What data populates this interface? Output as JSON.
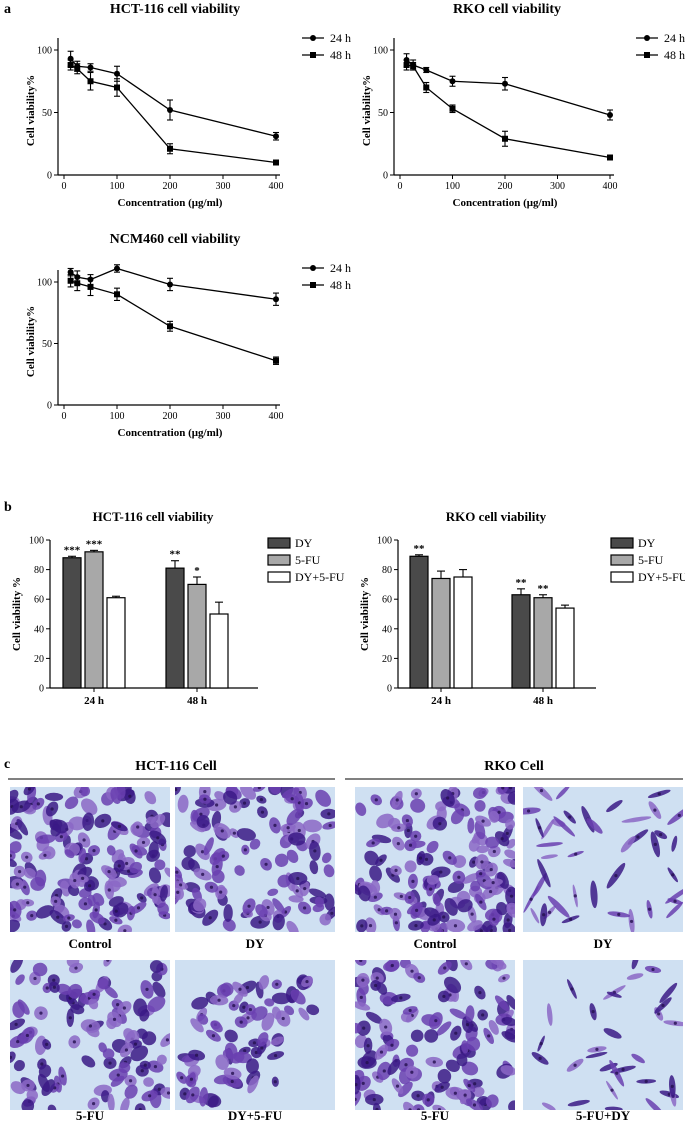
{
  "panel_labels": {
    "a": "a",
    "b": "b",
    "c": "c"
  },
  "colors": {
    "ink": "#000000",
    "bar_dy": "#4a4a4a",
    "bar_5fu": "#a8a8a8",
    "bar_combo": "#ffffff",
    "stain_dark": "#3b1a86",
    "stain_mid": "#6a3fb0",
    "stain_light": "#8b67c6",
    "background_glass": "#cfe0f2"
  },
  "chart_data": [
    {
      "id": "hct_line",
      "type": "line",
      "title": "HCT-116 cell viability",
      "xlabel": "Concentration (μg/ml)",
      "ylabel": "Cell viability%",
      "xlim": [
        0,
        400
      ],
      "ylim": [
        0,
        100
      ],
      "xticks": [
        0,
        100,
        200,
        300,
        400
      ],
      "yticks": [
        0,
        50,
        100
      ],
      "legend": "top-right",
      "series": [
        {
          "name": "24 h",
          "marker": "circle",
          "x": [
            12.5,
            25,
            50,
            100,
            200,
            400
          ],
          "y": [
            93,
            87,
            86,
            81,
            52,
            31
          ],
          "err": [
            6,
            4,
            3,
            6,
            8,
            3
          ]
        },
        {
          "name": "48 h",
          "marker": "square",
          "x": [
            12.5,
            25,
            50,
            100,
            200,
            400
          ],
          "y": [
            88,
            85,
            75,
            70,
            21,
            10
          ],
          "err": [
            4,
            4,
            7,
            7,
            4,
            1
          ]
        }
      ]
    },
    {
      "id": "rko_line",
      "type": "line",
      "title": "RKO cell viability",
      "xlabel": "Concentration (μg/ml)",
      "ylabel": "Cell viability%",
      "xlim": [
        0,
        400
      ],
      "ylim": [
        0,
        100
      ],
      "xticks": [
        0,
        100,
        200,
        300,
        400
      ],
      "yticks": [
        0,
        50,
        100
      ],
      "legend": "top-right",
      "series": [
        {
          "name": "24 h",
          "marker": "circle",
          "x": [
            12.5,
            25,
            50,
            100,
            200,
            400
          ],
          "y": [
            92,
            88,
            84,
            75,
            73,
            48
          ],
          "err": [
            5,
            4,
            2,
            4,
            5,
            4
          ]
        },
        {
          "name": "48 h",
          "marker": "square",
          "x": [
            12.5,
            25,
            50,
            100,
            200,
            400
          ],
          "y": [
            88,
            87,
            70,
            53,
            29,
            14
          ],
          "err": [
            4,
            3,
            4,
            3,
            6,
            1
          ]
        }
      ]
    },
    {
      "id": "ncm_line",
      "type": "line",
      "title": "NCM460 cell viability",
      "xlabel": "Concentration (μg/ml)",
      "ylabel": "Cell viability%",
      "xlim": [
        0,
        400
      ],
      "ylim": [
        0,
        100
      ],
      "xticks": [
        0,
        100,
        200,
        300,
        400
      ],
      "yticks": [
        0,
        50,
        100
      ],
      "legend": "top-right",
      "series": [
        {
          "name": "24 h",
          "marker": "circle",
          "x": [
            12.5,
            25,
            50,
            100,
            200,
            400
          ],
          "y": [
            108,
            104,
            102,
            111,
            98,
            86
          ],
          "err": [
            3,
            5,
            4,
            3,
            5,
            5
          ]
        },
        {
          "name": "48 h",
          "marker": "square",
          "x": [
            12.5,
            25,
            50,
            100,
            200,
            400
          ],
          "y": [
            101,
            99,
            96,
            90,
            64,
            36
          ],
          "err": [
            5,
            6,
            7,
            5,
            4,
            3
          ]
        }
      ]
    },
    {
      "id": "hct_bar",
      "type": "bar",
      "title": "HCT-116 cell viability",
      "xlabel": "",
      "ylabel": "Cell viability %",
      "ylim": [
        0,
        100
      ],
      "yticks": [
        0,
        20,
        40,
        60,
        80,
        100
      ],
      "categories": [
        "24 h",
        "48 h"
      ],
      "legend": "right",
      "series": [
        {
          "name": "DY",
          "values": [
            88,
            81
          ],
          "err": [
            1,
            5
          ],
          "sig": [
            "***",
            "**"
          ]
        },
        {
          "name": "5-FU",
          "values": [
            92,
            70
          ],
          "err": [
            1,
            5
          ],
          "sig": [
            "***",
            "*"
          ]
        },
        {
          "name": "DY+5-FU",
          "values": [
            61,
            50
          ],
          "err": [
            1,
            8
          ],
          "sig": [
            "",
            ""
          ]
        }
      ]
    },
    {
      "id": "rko_bar",
      "type": "bar",
      "title": "RKO cell viability",
      "xlabel": "",
      "ylabel": "Cell viability %",
      "ylim": [
        0,
        100
      ],
      "yticks": [
        0,
        20,
        40,
        60,
        80,
        100
      ],
      "categories": [
        "24 h",
        "48 h"
      ],
      "legend": "right",
      "series": [
        {
          "name": "DY",
          "values": [
            89,
            63
          ],
          "err": [
            1,
            4
          ],
          "sig": [
            "**",
            "**"
          ]
        },
        {
          "name": "5-FU",
          "values": [
            74,
            61
          ],
          "err": [
            5,
            2
          ],
          "sig": [
            "",
            "**"
          ]
        },
        {
          "name": "DY+5-FU",
          "values": [
            75,
            54
          ],
          "err": [
            5,
            2
          ],
          "sig": [
            "",
            ""
          ]
        }
      ]
    }
  ],
  "microscopy": {
    "left_group": "HCT-116 Cell",
    "right_group": "RKO Cell",
    "images": [
      {
        "id": "hct_control",
        "label": "Control",
        "density": 0.92,
        "shape": "dense"
      },
      {
        "id": "hct_dy",
        "label": "DY",
        "density": 0.7,
        "shape": "dense"
      },
      {
        "id": "rko_control",
        "label": "Control",
        "density": 0.88,
        "shape": "dense"
      },
      {
        "id": "rko_dy",
        "label": "DY",
        "density": 0.45,
        "shape": "spindle"
      },
      {
        "id": "hct_5fu",
        "label": "5-FU",
        "density": 0.62,
        "shape": "dense"
      },
      {
        "id": "hct_combo",
        "label": "DY+5-FU",
        "density": 0.45,
        "shape": "clusters"
      },
      {
        "id": "rko_5fu",
        "label": "5-FU",
        "density": 0.72,
        "shape": "dense"
      },
      {
        "id": "rko_combo",
        "label": "5-FU+DY",
        "density": 0.35,
        "shape": "spindle"
      }
    ]
  }
}
